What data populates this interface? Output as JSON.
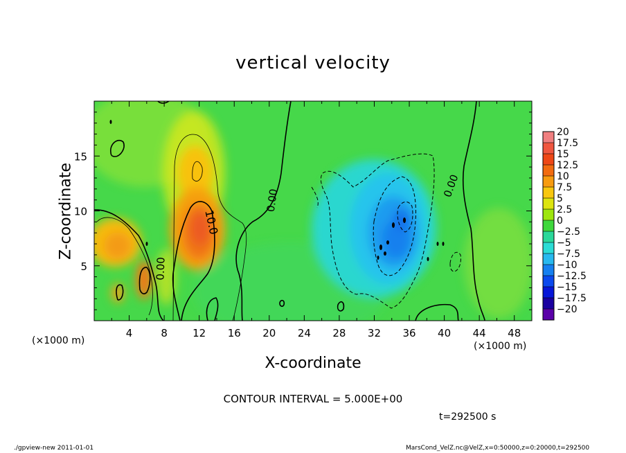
{
  "title": "vertical velocity",
  "footer": {
    "left": "./gpview-new   2011-01-01",
    "right": "MarsCond_VelZ.nc@VelZ,x=0:50000,z=0:20000,t=292500"
  },
  "contour_interval_text": "CONTOUR INTERVAL = 5.000E+00",
  "time_text": "t=292500 s",
  "chart_data": {
    "type": "heatmap",
    "title": "vertical velocity",
    "xlabel": "X-coordinate",
    "ylabel": "Z-coordinate",
    "x_unit_label": "(×1000 m)",
    "xlim": [
      0,
      50
    ],
    "ylim": [
      0,
      20
    ],
    "x_ticks": [
      4,
      8,
      12,
      16,
      20,
      24,
      28,
      32,
      36,
      40,
      44,
      48
    ],
    "y_ticks": [
      5,
      10,
      15
    ],
    "contour_labels": [
      "0.00",
      "0.00",
      "0.00",
      "10.0"
    ],
    "colorbar": {
      "labels": [
        "20",
        "17.5",
        "15",
        "12.5",
        "10",
        "7.5",
        "5",
        "2.5",
        "0",
        "-2.5",
        "-5",
        "-7.5",
        "-10",
        "-12.5",
        "-15",
        "-17.5",
        "-20"
      ],
      "colors": [
        "#f07f80",
        "#f0563f",
        "#ee4716",
        "#f26b10",
        "#f79b10",
        "#f8c70f",
        "#dde40f",
        "#9ee60d",
        "#3ed83c",
        "#2ad89a",
        "#2bdcd5",
        "#28b9ef",
        "#1680f0",
        "#0b49ee",
        "#0716d8",
        "#1a00a0",
        "#5a00a8"
      ]
    },
    "features": [
      {
        "kind": "updraft",
        "x": 11.5,
        "z": 8.0,
        "peak": 12.5
      },
      {
        "kind": "updraft",
        "x": 11.5,
        "z": 14.0,
        "peak": 7.5
      },
      {
        "kind": "updraft",
        "x": 3.0,
        "z": 7.0,
        "peak": 7.5
      },
      {
        "kind": "updraft",
        "x": 5.8,
        "z": 4.0,
        "peak": 10
      },
      {
        "kind": "updraft",
        "x": 2.6,
        "z": 2.3,
        "peak": 10
      },
      {
        "kind": "downdraft",
        "x": 34.0,
        "z": 8.5,
        "peak": -10
      },
      {
        "kind": "downdraft",
        "x": 33.0,
        "z": 12.5,
        "peak": -5
      }
    ]
  }
}
